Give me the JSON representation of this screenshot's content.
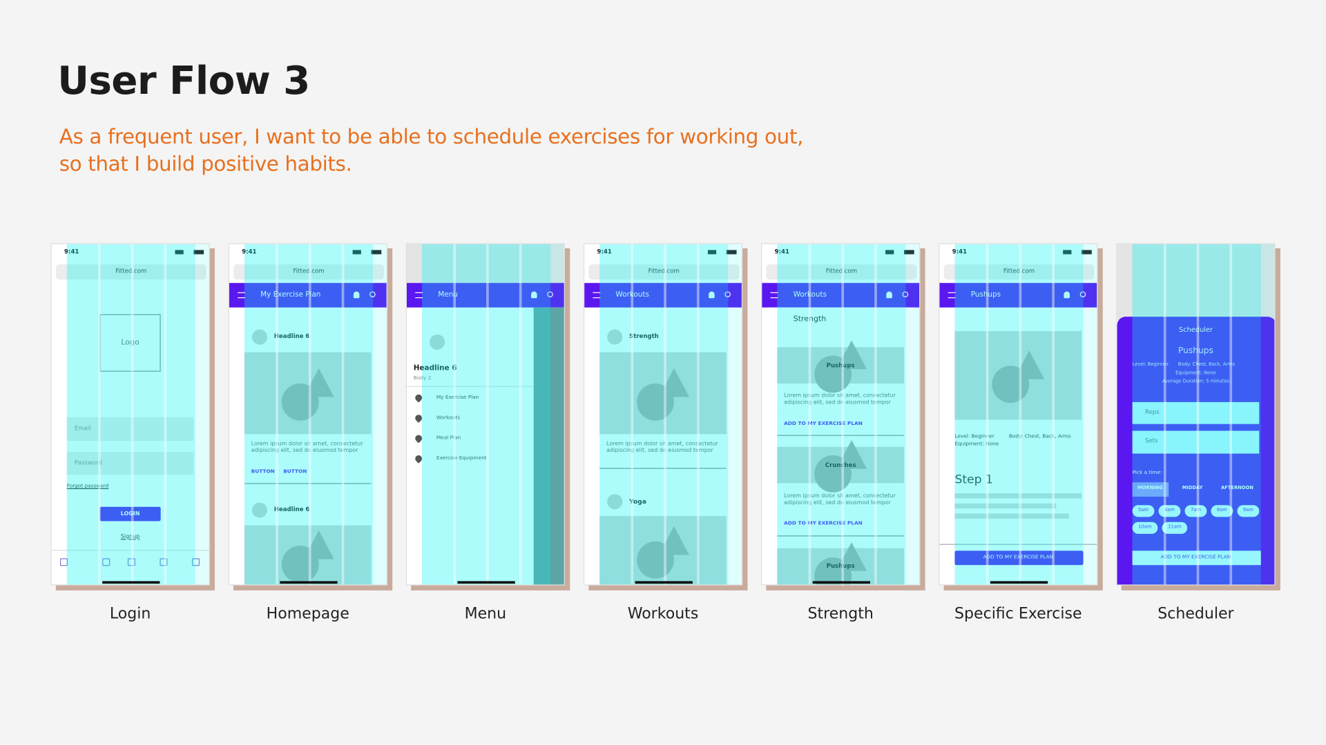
{
  "header": {
    "title": "User Flow 3",
    "subtitle": [
      "As a frequent user, I want to be able to schedule exercises for working out,",
      "so that I build positive habits."
    ]
  },
  "screens": [
    {
      "label": "Login",
      "status_time": "9:41",
      "url": "Fitted.com",
      "texts": [
        "Logo",
        "Email",
        "Password",
        "Forgot password",
        "LOGIN",
        "Signup"
      ]
    },
    {
      "label": "Homepage",
      "status_time": "9:41",
      "url": "Fitted.com",
      "app_bar": "My Exercise Plan",
      "texts": [
        "Headline 6",
        "Lorem ipsum dolor sit amet, consectetur adipiscing elit, sed do eiusmod tempor",
        "BUTTON",
        "BUTTON",
        "Headline 6"
      ]
    },
    {
      "label": "Menu",
      "app_bar": "Menu",
      "texts": [
        "Headline 6",
        "Body 2",
        "My Exercise Plan",
        "Workouts",
        "Meal Plan",
        "Exercise Equipment"
      ]
    },
    {
      "label": "Workouts",
      "status_time": "9:41",
      "url": "Fitted.com",
      "app_bar": "Workouts",
      "texts": [
        "Strength",
        "Lorem ipsum dolor sit amet, consectetur adipiscing elit, sed do eiusmod tempor",
        "Yoga"
      ]
    },
    {
      "label": "Strength",
      "status_time": "9:41",
      "url": "Fitted.com",
      "app_bar": "Workouts",
      "texts": [
        "Strength",
        "Pushups",
        "Lorem ipsum dolor sit amet, consectetur adipiscing elit, sed do eiusmod tempor",
        "ADD TO MY EXERCISE PLAN",
        "Crunches",
        "Lorem ipsum dolor sit amet, consectetur adipiscing elit, sed do eiusmod tempor",
        "ADD TO MY EXERCISE PLAN",
        "Pushups"
      ]
    },
    {
      "label": "Specific Exercise",
      "status_time": "9:41",
      "url": "Fitted.com",
      "app_bar": "Pushups",
      "texts": [
        "Level: Beginner",
        "Body: Chest, Back, Arms",
        "Equipment: None",
        "Step 1",
        "ADD TO MY EXERCISE PLAN"
      ]
    },
    {
      "label": "Scheduler",
      "texts": [
        "Scheduler",
        "Pushups",
        "Level: Beginner",
        "Body: Chest, Back, Arms",
        "Equipment: None",
        "Average Duration: 5 minutes",
        "Reps",
        "Sets",
        "Pick a time:",
        "MORNING",
        "MIDDAY",
        "AFTERNOON",
        "5am",
        "6am",
        "7am",
        "8am",
        "9am",
        "10am",
        "11am",
        "ADD TO MY EXERCISE PLAN"
      ]
    }
  ]
}
